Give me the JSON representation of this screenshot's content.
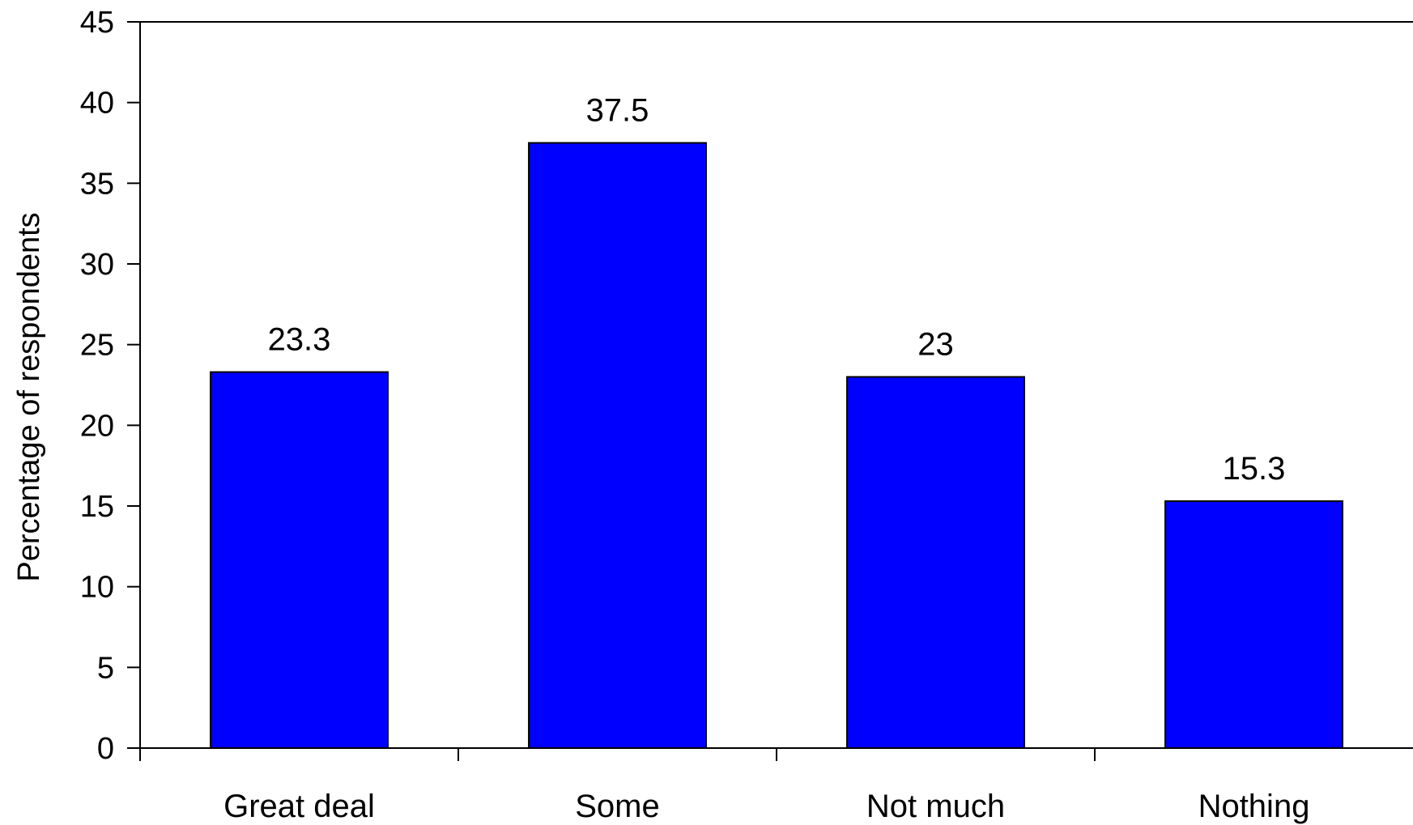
{
  "chart_data": {
    "type": "bar",
    "categories": [
      "Great deal",
      "Some",
      "Not much",
      "Nothing"
    ],
    "values": [
      23.3,
      37.5,
      23,
      15.3
    ],
    "value_labels": [
      "23.3",
      "37.5",
      "23",
      "15.3"
    ],
    "title": "",
    "xlabel": "",
    "ylabel": "Percentage of respondents",
    "ylim": [
      0,
      45
    ],
    "yticks": [
      0,
      5,
      10,
      15,
      20,
      25,
      30,
      35,
      40,
      45
    ],
    "ytick_labels": [
      "0",
      "5",
      "10",
      "15",
      "20",
      "25",
      "30",
      "35",
      "40",
      "45"
    ],
    "grid": false,
    "legend": "none",
    "bar_color": "#0000FF",
    "bar_edge_color": "#000000"
  }
}
